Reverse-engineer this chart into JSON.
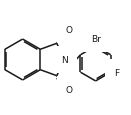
{
  "bg_color": "#ffffff",
  "line_color": "#1a1a1a",
  "line_width": 1.1,
  "font_size": 6.5,
  "dbo": 0.015,
  "xlim": [
    0.0,
    1.3
  ],
  "ylim": [
    0.0,
    1.05
  ]
}
